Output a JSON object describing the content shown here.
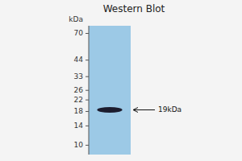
{
  "chart_data": {
    "type": "blot",
    "title": "Western Blot",
    "y_label": "kDa",
    "values": [
      18.5
    ],
    "heights": [
      1.8
    ],
    "color": "#1c1c2e",
    "log": "y",
    "ylim": [
      8.5,
      80
    ],
    "yticks": [
      70,
      44,
      33,
      26,
      22,
      18,
      14,
      10
    ],
    "annotations": [
      {
        "text": "19kDa",
        "y": 18.5
      }
    ]
  }
}
